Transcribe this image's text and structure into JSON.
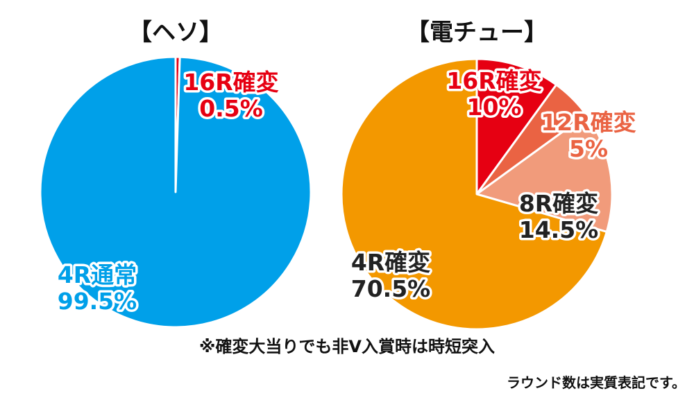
{
  "chart_data": [
    {
      "type": "pie",
      "title": "【ヘソ】",
      "slices": [
        {
          "label": "16R確変",
          "value": 0.5,
          "value_text": "0.5%",
          "color": "#e60012",
          "label_color": "#e60012"
        },
        {
          "label": "4R通常",
          "value": 99.5,
          "value_text": "99.5%",
          "color": "#00a0e9",
          "label_color": "#00a0e9"
        }
      ]
    },
    {
      "type": "pie",
      "title": "【電チュー】",
      "slices": [
        {
          "label": "16R確変",
          "value": 10,
          "value_text": "10%",
          "color": "#e60012",
          "label_color": "#e60012"
        },
        {
          "label": "12R確変",
          "value": 5,
          "value_text": "5%",
          "color": "#ea6343",
          "label_color": "#ea6343"
        },
        {
          "label": "8R確変",
          "value": 14.5,
          "value_text": "14.5%",
          "color": "#f19b7b",
          "label_color": "#222222"
        },
        {
          "label": "4R確変",
          "value": 70.5,
          "value_text": "70.5%",
          "color": "#f39800",
          "label_color": "#222222"
        }
      ]
    }
  ],
  "notes": {
    "footnote": "※確変大当りでも非V入賞時は時短突入",
    "round_note": "ラウンド数は実質表記です。"
  }
}
